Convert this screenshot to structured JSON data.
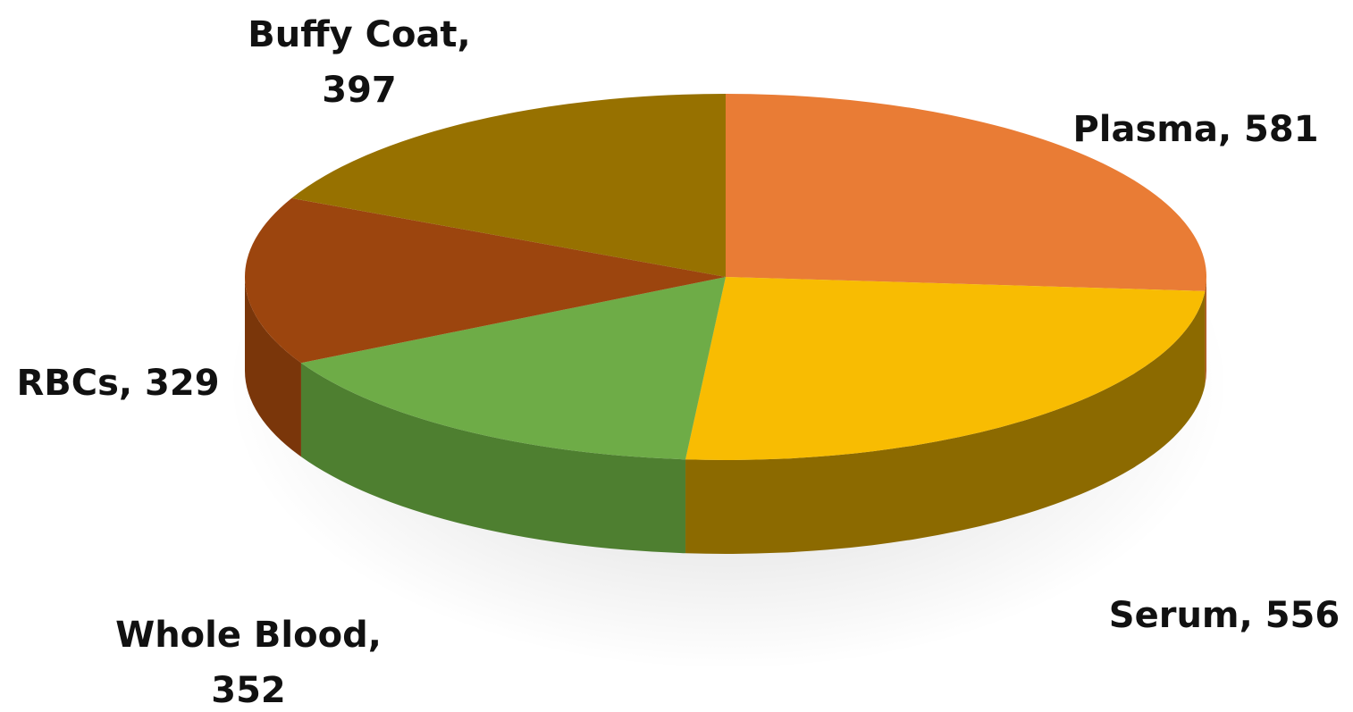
{
  "chart_data": {
    "type": "pie",
    "title": "",
    "start_angle_deg": -90,
    "direction": "clockwise",
    "slices": [
      {
        "label": "Plasma",
        "value": 581,
        "display": [
          "Plasma, 581"
        ],
        "color": "#E97C35",
        "side_color": "#B0561E"
      },
      {
        "label": "Serum",
        "value": 556,
        "display": [
          "Serum, 556"
        ],
        "color": "#F8BC02",
        "side_color": "#8C6A00"
      },
      {
        "label": "Whole Blood",
        "value": 352,
        "display": [
          "Whole Blood,",
          "352"
        ],
        "color": "#6EAC47",
        "side_color": "#4E7F30"
      },
      {
        "label": "RBCs",
        "value": 329,
        "display": [
          "RBCs, 329"
        ],
        "color": "#9C450E",
        "side_color": "#7A360A"
      },
      {
        "label": "Buffy Coat",
        "value": 397,
        "display": [
          "Buffy Coat,",
          "397"
        ],
        "color": "#977100",
        "side_color": "#6E5200"
      }
    ]
  }
}
